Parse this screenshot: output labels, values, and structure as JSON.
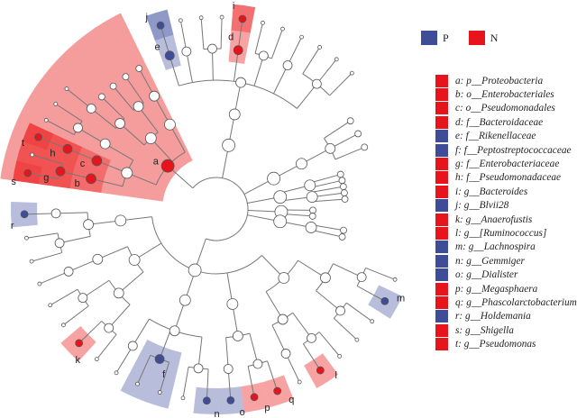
{
  "colors": {
    "P": "#3f4c98",
    "N": "#e8141c",
    "P_shade": "rgba(95,108,175,0.45)",
    "N_shade": "rgba(240,50,50,0.45)",
    "N_phylum_shade": "#f59c9c"
  },
  "group_legend": [
    {
      "group": "P",
      "label": "P"
    },
    {
      "group": "N",
      "label": "N"
    }
  ],
  "clade_legend": [
    {
      "letter": "a",
      "text": "a: p__Proteobacteria",
      "group": "N"
    },
    {
      "letter": "b",
      "text": "b: o__Enterobacteriales",
      "group": "N"
    },
    {
      "letter": "c",
      "text": "c: o__Pseudomonadales",
      "group": "N"
    },
    {
      "letter": "d",
      "text": "d: f__Bacteroidaceae",
      "group": "N"
    },
    {
      "letter": "e",
      "text": "e: f__Rikenellaceae",
      "group": "P"
    },
    {
      "letter": "f",
      "text": "f: f__Peptostreptococcaceae",
      "group": "P"
    },
    {
      "letter": "g",
      "text": "g: f__Enterobacteriaceae",
      "group": "N"
    },
    {
      "letter": "h",
      "text": "h: f__Pseudomonadaceae",
      "group": "N"
    },
    {
      "letter": "i",
      "text": "i: g__Bacteroides",
      "group": "N"
    },
    {
      "letter": "j",
      "text": "j: g__Blvii28",
      "group": "P"
    },
    {
      "letter": "k",
      "text": "k: g__Anaerofustis",
      "group": "N"
    },
    {
      "letter": "l",
      "text": "l: g__[Ruminococcus]",
      "group": "N"
    },
    {
      "letter": "m",
      "text": "m: g__Lachnospira",
      "group": "P"
    },
    {
      "letter": "n",
      "text": "n: g__Gemmiger",
      "group": "P"
    },
    {
      "letter": "o",
      "text": "o: g__Dialister",
      "group": "P"
    },
    {
      "letter": "p",
      "text": "p: g__Megasphaera",
      "group": "N"
    },
    {
      "letter": "q",
      "text": "q: g__Phascolarctobacterium",
      "group": "N"
    },
    {
      "letter": "r",
      "text": "r: g__Holdemania",
      "group": "P"
    },
    {
      "letter": "s",
      "text": "s: g__Shigella",
      "group": "N"
    },
    {
      "letter": "t",
      "text": "t: g__Pseudomonas",
      "group": "N"
    }
  ]
}
